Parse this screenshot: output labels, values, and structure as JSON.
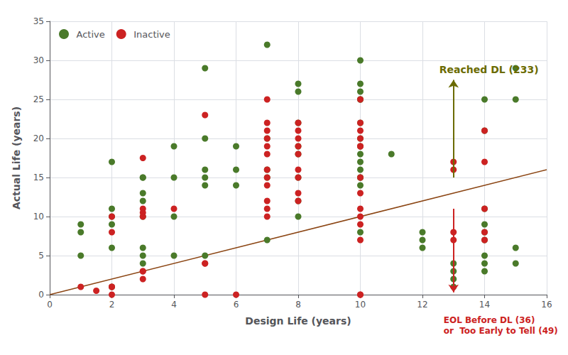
{
  "chart_data": {
    "type": "scatter",
    "xlabel": "Design Life (years)",
    "ylabel": "Actual Life (years)",
    "xlim": [
      0,
      16
    ],
    "ylim": [
      0,
      35
    ],
    "xticks": [
      0,
      2,
      4,
      6,
      8,
      10,
      12,
      14,
      16
    ],
    "yticks": [
      0,
      5,
      10,
      15,
      20,
      25,
      30,
      35
    ],
    "grid": true,
    "legend": "upper left",
    "series": [
      {
        "name": "Active",
        "color": "#4a7a2a",
        "x": [
          1,
          1,
          1,
          2,
          2,
          2,
          2,
          2,
          2,
          3,
          3,
          3,
          3,
          3,
          3,
          3,
          3,
          4,
          4,
          4,
          4,
          5,
          5,
          5,
          5,
          5,
          5,
          6,
          6,
          6,
          7,
          7,
          7,
          7,
          7,
          8,
          8,
          8,
          8,
          8,
          8,
          8,
          8,
          10,
          10,
          10,
          10,
          10,
          10,
          10,
          10,
          10,
          10,
          10,
          10,
          10,
          10,
          10,
          11,
          12,
          12,
          12,
          13,
          13,
          13,
          13,
          14,
          14,
          14,
          14,
          14,
          14,
          14,
          14,
          14,
          15,
          15,
          15,
          15
        ],
        "values": [
          9,
          8,
          5,
          17,
          11,
          10,
          9,
          6,
          1,
          15,
          15,
          13,
          12,
          10,
          6,
          5,
          4,
          19,
          15,
          10,
          5,
          29,
          20,
          16,
          15,
          14,
          5,
          19,
          16,
          14,
          32,
          20,
          16,
          15,
          7,
          27,
          26,
          22,
          19,
          18,
          15,
          12,
          10,
          30,
          27,
          26,
          25,
          25,
          22,
          20,
          19,
          18,
          17,
          16,
          15,
          15,
          14,
          8,
          18,
          8,
          7,
          6,
          4,
          3,
          2,
          1,
          25,
          21,
          11,
          9,
          8,
          7,
          5,
          4,
          3,
          29,
          25,
          6,
          4
        ]
      },
      {
        "name": "Inactive",
        "color": "#cc2222",
        "x": [
          1,
          1.5,
          2,
          2,
          2,
          2,
          2,
          3,
          3,
          3,
          3,
          3,
          3,
          3,
          4,
          5,
          5,
          5,
          5,
          6,
          7,
          7,
          7,
          7,
          7,
          7,
          7,
          7,
          7,
          7,
          7,
          7,
          8,
          8,
          8,
          8,
          8,
          8,
          8,
          8,
          8,
          10,
          10,
          10,
          10,
          10,
          10,
          10,
          10,
          10,
          10,
          10,
          10,
          10,
          10,
          13,
          13,
          13,
          13,
          14,
          14,
          14,
          14,
          14
        ],
        "values": [
          1,
          0.5,
          10,
          8,
          0,
          1,
          1,
          2,
          3,
          3,
          10,
          11,
          17.5,
          10.5,
          11,
          23,
          0,
          4,
          4,
          0,
          25,
          22,
          21,
          20,
          19,
          18,
          16,
          15,
          14,
          12,
          11,
          10,
          22,
          21,
          20,
          19,
          18,
          16,
          15,
          13,
          12,
          25,
          22,
          21,
          20,
          19,
          19,
          15,
          13,
          11,
          10,
          9,
          7,
          0,
          0,
          17,
          16,
          8,
          7,
          21,
          17,
          11,
          8,
          7
        ]
      },
      {
        "type": "line",
        "color": "#8B4513",
        "x": [
          0,
          16
        ],
        "values": [
          0,
          16
        ]
      }
    ],
    "annotations": [
      {
        "text": "Reached DL (233)",
        "color": "#6b6b00",
        "arrow": {
          "x": 13.0,
          "from": 15.0,
          "to": 27.5
        }
      },
      {
        "text": "EOL Before DL (36)\nor  Too Early to Tell (49)",
        "color": "#cc2222",
        "arrow": {
          "x": 13.0,
          "from": 11.0,
          "to": 0.3
        }
      }
    ]
  }
}
